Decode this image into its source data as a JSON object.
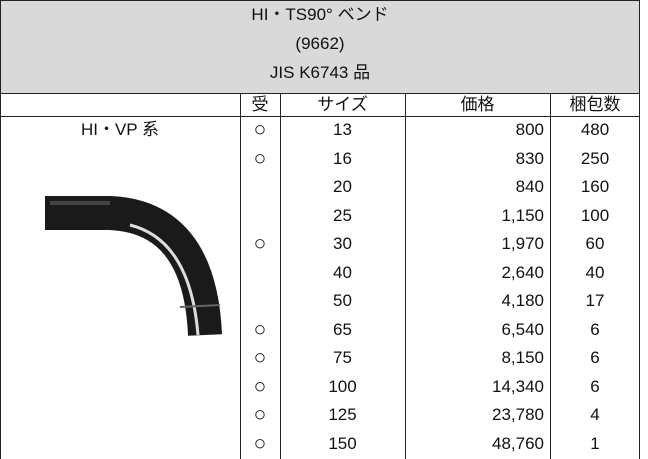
{
  "header": {
    "lines": [
      "HI・TS90° ベンド",
      "(9662)",
      "JIS K6743 品"
    ]
  },
  "table": {
    "columns": [
      "受",
      "サイズ",
      "価格",
      "梱包数"
    ],
    "group_label": "HI・VP 系",
    "rows": [
      {
        "uke": "○",
        "size": "13",
        "price": "800",
        "count": "480"
      },
      {
        "uke": "○",
        "size": "16",
        "price": "830",
        "count": "250"
      },
      {
        "size": "20",
        "price": "840",
        "count": "160"
      },
      {
        "size": "25",
        "price": "1,150",
        "count": "100"
      },
      {
        "uke": "○",
        "size": "30",
        "price": "1,970",
        "count": "60"
      },
      {
        "size": "40",
        "price": "2,640",
        "count": "40"
      },
      {
        "size": "50",
        "price": "4,180",
        "count": "17"
      },
      {
        "uke": "○",
        "size": "65",
        "price": "6,540",
        "count": "6"
      },
      {
        "uke": "○",
        "size": "75",
        "price": "8,150",
        "count": "6"
      },
      {
        "uke": "○",
        "size": "100",
        "price": "14,340",
        "count": "6"
      },
      {
        "uke": "○",
        "size": "125",
        "price": "23,780",
        "count": "4"
      },
      {
        "uke": "○",
        "size": "150",
        "price": "48,760",
        "count": "1"
      }
    ]
  }
}
